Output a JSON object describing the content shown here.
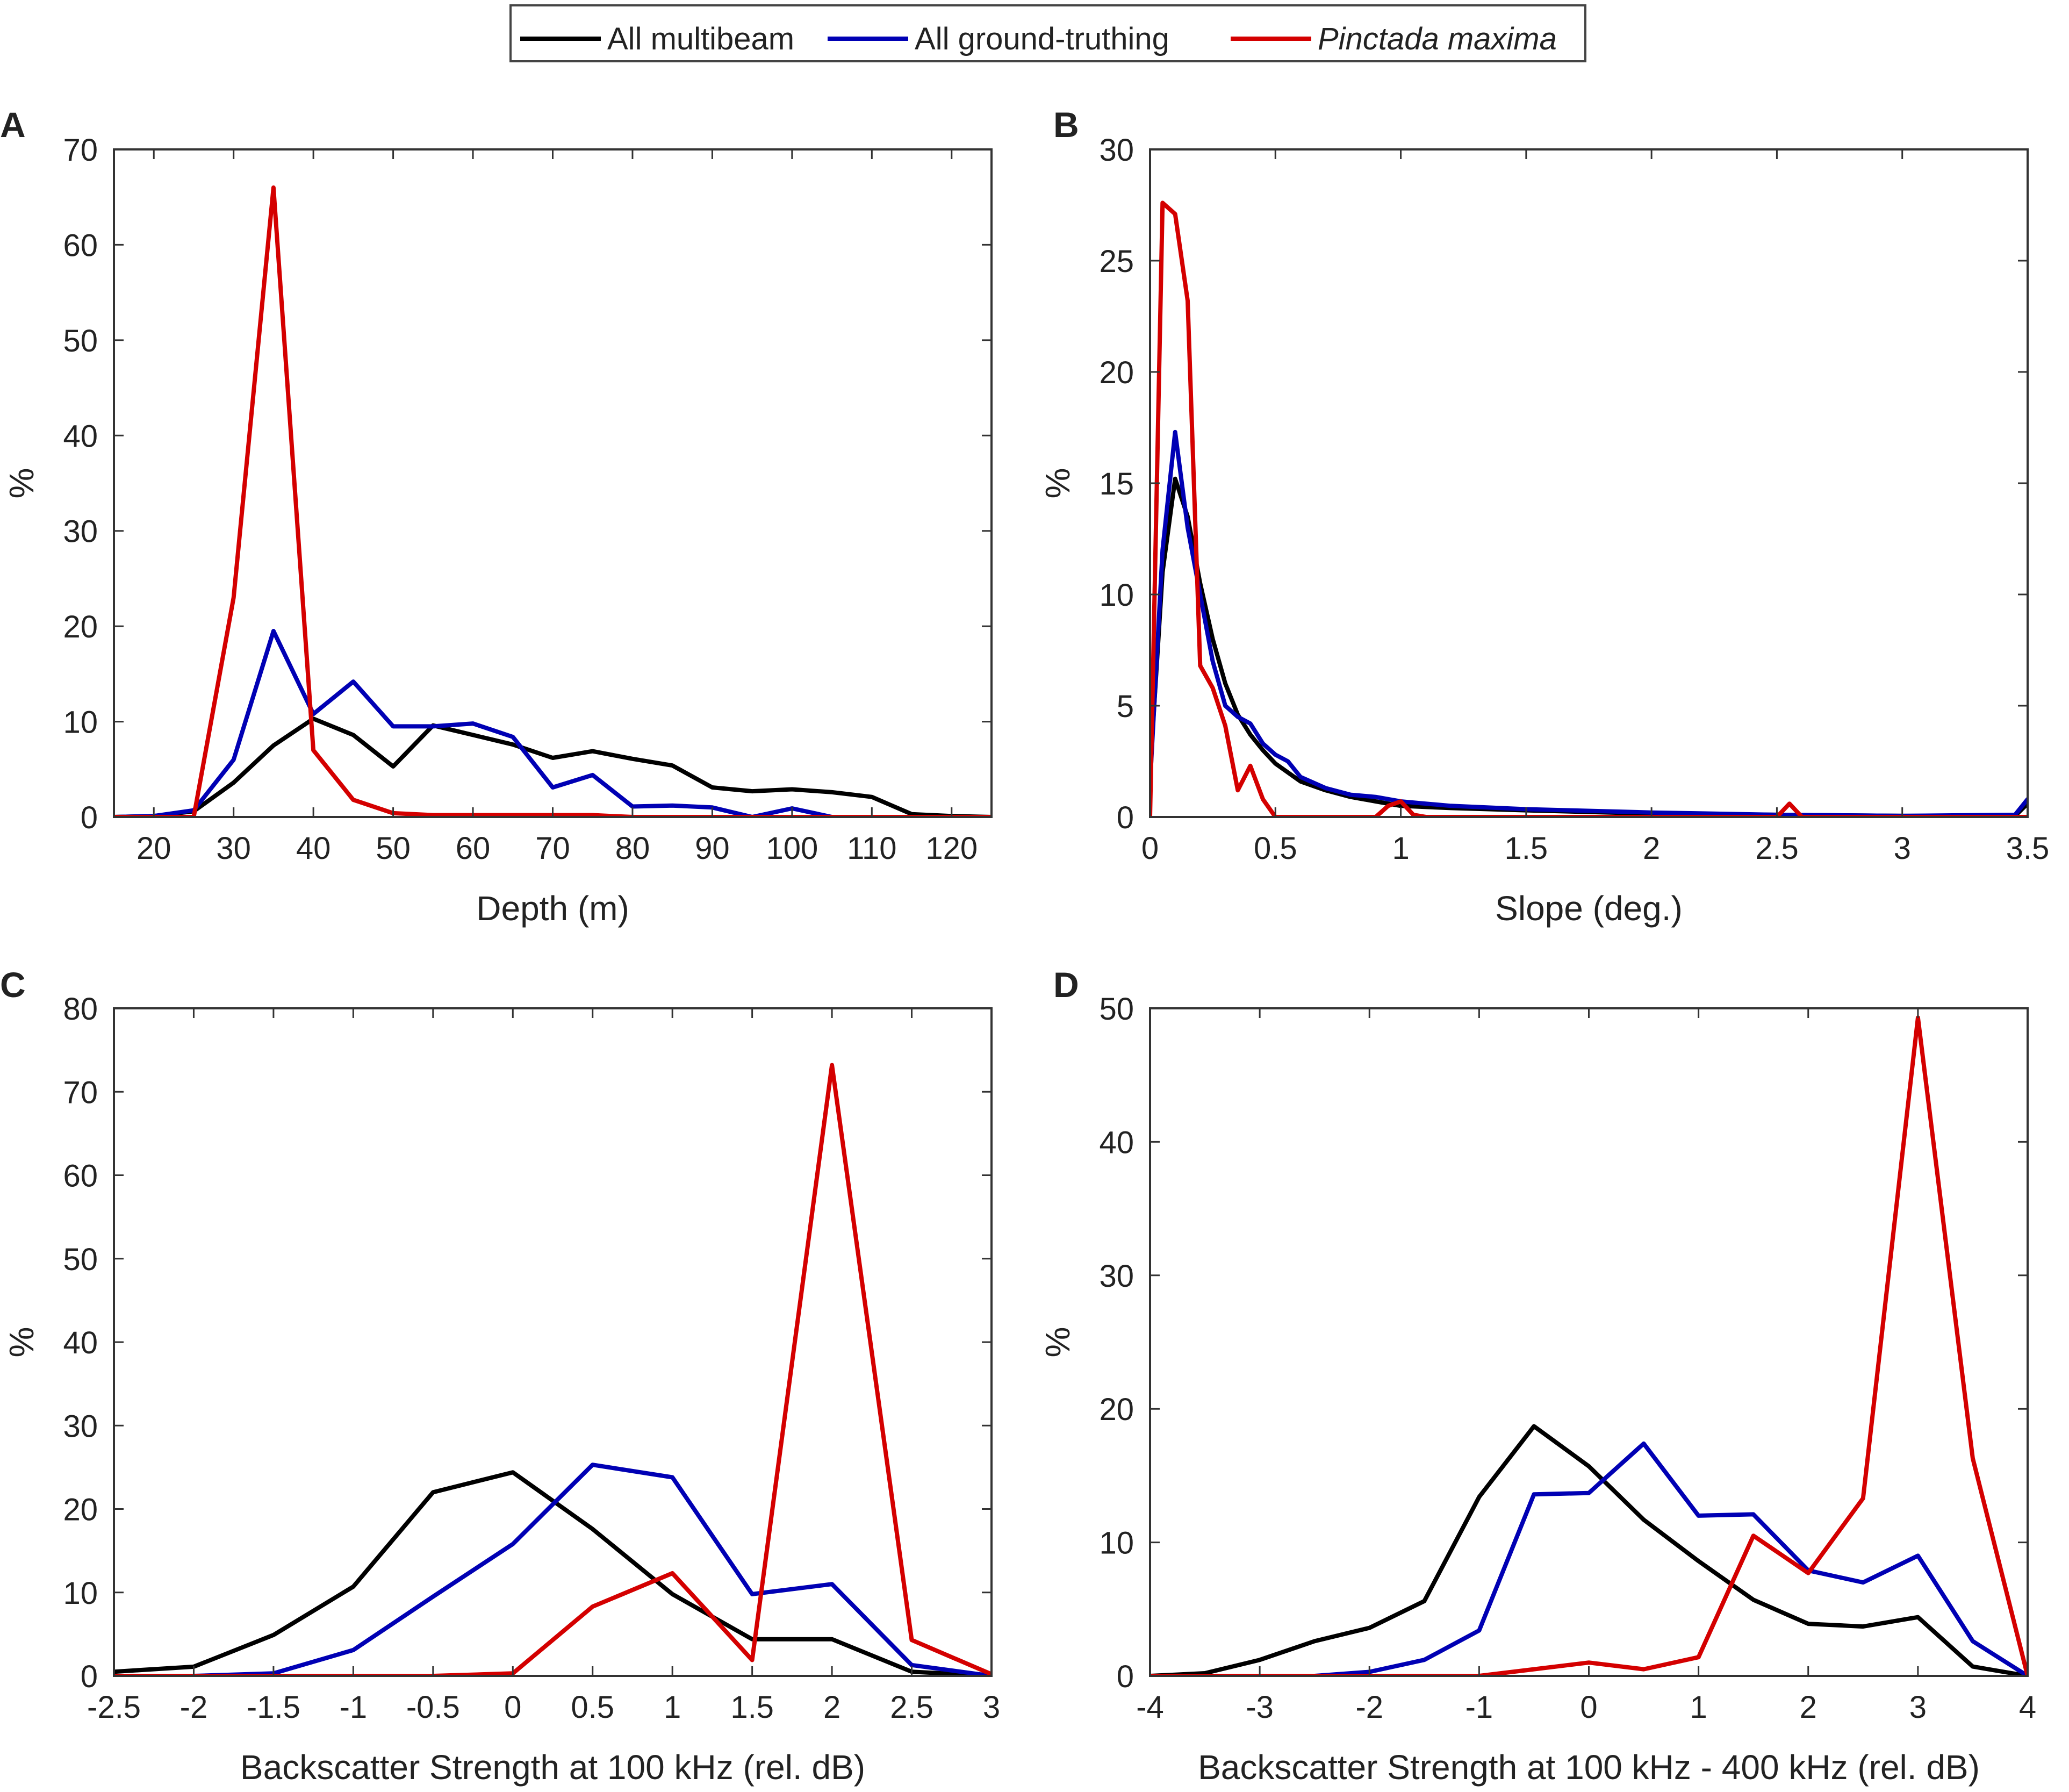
{
  "legend": {
    "entries": [
      {
        "label": "All multibeam",
        "color": "#000000",
        "italic": false
      },
      {
        "label": "All ground-truthing",
        "color": "#0000b4",
        "italic": false
      },
      {
        "label": "Pinctada maxima",
        "color": "#d40000",
        "italic": true
      }
    ]
  },
  "chart_data": [
    {
      "panel": "A",
      "type": "line",
      "title": "",
      "xlabel": "Depth (m)",
      "ylabel": "%",
      "xlim": [
        15,
        125
      ],
      "ylim": [
        0,
        70
      ],
      "xticks": [
        20,
        30,
        40,
        50,
        60,
        70,
        80,
        90,
        100,
        110,
        120
      ],
      "xtick_labels": [
        "20",
        "30",
        "40",
        "50",
        "60",
        "70",
        "80",
        "90",
        "100",
        "110",
        "120"
      ],
      "yticks": [
        0,
        10,
        20,
        30,
        40,
        50,
        60,
        70
      ],
      "ytick_labels": [
        "0",
        "10",
        "20",
        "30",
        "40",
        "50",
        "60",
        "70"
      ],
      "series": [
        {
          "name": "All multibeam",
          "color": "#000000",
          "x": [
            15,
            20,
            25,
            30,
            35,
            40,
            45,
            50,
            55,
            60,
            65,
            70,
            75,
            80,
            85,
            90,
            95,
            100,
            105,
            110,
            115,
            120,
            125
          ],
          "y": [
            0,
            0.1,
            0.6,
            3.6,
            7.5,
            10.3,
            8.6,
            5.3,
            9.6,
            8.6,
            7.6,
            6.2,
            6.9,
            6.1,
            5.4,
            3.1,
            2.7,
            2.9,
            2.6,
            2.1,
            0.3,
            0.1,
            0
          ]
        },
        {
          "name": "All ground-truthing",
          "color": "#0000b4",
          "x": [
            15,
            20,
            25,
            30,
            35,
            40,
            45,
            50,
            55,
            60,
            65,
            70,
            75,
            80,
            85,
            90,
            95,
            100,
            105,
            110,
            115,
            120,
            125
          ],
          "y": [
            0,
            0.1,
            0.7,
            6.0,
            19.5,
            10.8,
            14.2,
            9.5,
            9.5,
            9.8,
            8.4,
            3.1,
            4.4,
            1.1,
            1.2,
            1.0,
            0,
            0.9,
            0,
            0,
            0,
            0,
            0
          ]
        },
        {
          "name": "Pinctada maxima",
          "color": "#d40000",
          "x": [
            15,
            20,
            25,
            30,
            35,
            40,
            45,
            50,
            55,
            60,
            65,
            70,
            75,
            80,
            85,
            90,
            95,
            100,
            105,
            110,
            115,
            120,
            125
          ],
          "y": [
            0,
            0,
            0,
            23.0,
            66.0,
            7.0,
            1.8,
            0.4,
            0.2,
            0.2,
            0.2,
            0.2,
            0.2,
            0,
            0,
            0,
            0,
            0,
            0,
            0,
            0,
            0,
            0
          ]
        }
      ]
    },
    {
      "panel": "B",
      "type": "line",
      "title": "",
      "xlabel": "Slope (deg.)",
      "ylabel": "%",
      "xlim": [
        0,
        3.5
      ],
      "ylim": [
        0,
        30
      ],
      "xticks": [
        0,
        0.5,
        1,
        1.5,
        2,
        2.5,
        3,
        3.5
      ],
      "xtick_labels": [
        "0",
        "0.5",
        "1",
        "1.5",
        "2",
        "2.5",
        "3",
        "3.5"
      ],
      "yticks": [
        0,
        5,
        10,
        15,
        20,
        25,
        30
      ],
      "ytick_labels": [
        "0",
        "5",
        "10",
        "15",
        "20",
        "25",
        "30"
      ],
      "series": [
        {
          "name": "All multibeam",
          "color": "#000000",
          "x": [
            0,
            0.05,
            0.1,
            0.15,
            0.2,
            0.25,
            0.3,
            0.35,
            0.4,
            0.45,
            0.5,
            0.6,
            0.7,
            0.8,
            0.9,
            1.0,
            1.2,
            1.5,
            2.0,
            2.5,
            3.0,
            3.45,
            3.5
          ],
          "y": [
            2.0,
            11.0,
            15.2,
            13.5,
            10.5,
            8.0,
            6.0,
            4.6,
            3.7,
            3.0,
            2.4,
            1.6,
            1.2,
            0.9,
            0.7,
            0.5,
            0.4,
            0.3,
            0.15,
            0.1,
            0.05,
            0.05,
            0.6
          ]
        },
        {
          "name": "All ground-truthing",
          "color": "#0000b4",
          "x": [
            0,
            0.05,
            0.1,
            0.15,
            0.2,
            0.25,
            0.3,
            0.35,
            0.4,
            0.45,
            0.5,
            0.55,
            0.6,
            0.7,
            0.8,
            0.9,
            1.0,
            1.1,
            1.2,
            1.5,
            2.0,
            2.5,
            3.0,
            3.45,
            3.5
          ],
          "y": [
            1.5,
            12.0,
            17.3,
            13.0,
            10.0,
            7.0,
            5.0,
            4.5,
            4.2,
            3.3,
            2.8,
            2.5,
            1.8,
            1.3,
            1.0,
            0.9,
            0.7,
            0.6,
            0.5,
            0.35,
            0.2,
            0.1,
            0.05,
            0.1,
            0.8
          ]
        },
        {
          "name": "Pinctada maxima",
          "color": "#d40000",
          "x": [
            0,
            0.05,
            0.1,
            0.15,
            0.2,
            0.25,
            0.3,
            0.35,
            0.4,
            0.45,
            0.5,
            0.55,
            0.9,
            0.95,
            1.0,
            1.05,
            1.1,
            2.5,
            2.55,
            2.6,
            3.5
          ],
          "y": [
            0,
            27.6,
            27.1,
            23.2,
            6.8,
            5.8,
            4.1,
            1.2,
            2.3,
            0.8,
            0,
            0,
            0,
            0.5,
            0.7,
            0.1,
            0,
            0,
            0.6,
            0,
            0
          ]
        }
      ]
    },
    {
      "panel": "C",
      "type": "line",
      "title": "",
      "xlabel": "Backscatter Strength at 100 kHz (rel. dB)",
      "ylabel": "%",
      "xlim": [
        -2.5,
        3
      ],
      "ylim": [
        0,
        80
      ],
      "xticks": [
        -2.5,
        -2,
        -1.5,
        -1,
        -0.5,
        0,
        0.5,
        1,
        1.5,
        2,
        2.5,
        3
      ],
      "xtick_labels": [
        "-2.5",
        "-2",
        "-1.5",
        "-1",
        "-0.5",
        "0",
        "0.5",
        "1",
        "1.5",
        "2",
        "2.5",
        "3"
      ],
      "yticks": [
        0,
        10,
        20,
        30,
        40,
        50,
        60,
        70,
        80
      ],
      "ytick_labels": [
        "0",
        "10",
        "20",
        "30",
        "40",
        "50",
        "60",
        "70",
        "80"
      ],
      "series": [
        {
          "name": "All multibeam",
          "color": "#000000",
          "x": [
            -2.5,
            -2,
            -1.5,
            -1,
            -0.5,
            0,
            0.5,
            1,
            1.5,
            2,
            2.5,
            3
          ],
          "y": [
            0.5,
            1.1,
            4.9,
            10.7,
            22.0,
            24.4,
            17.6,
            9.8,
            4.4,
            4.4,
            0.5,
            0
          ]
        },
        {
          "name": "All ground-truthing",
          "color": "#0000b4",
          "x": [
            -2.5,
            -2,
            -1.5,
            -1,
            -0.5,
            0,
            0.5,
            1,
            1.5,
            2,
            2.5,
            3
          ],
          "y": [
            0,
            0,
            0.3,
            3.1,
            9.5,
            15.8,
            25.3,
            23.8,
            9.8,
            11.0,
            1.3,
            0
          ]
        },
        {
          "name": "Pinctada maxima",
          "color": "#d40000",
          "x": [
            -2.5,
            -2,
            -1.5,
            -1,
            -0.5,
            0,
            0.5,
            1,
            1.5,
            2,
            2.5,
            3
          ],
          "y": [
            0,
            0,
            0,
            0,
            0,
            0.3,
            8.3,
            12.3,
            1.9,
            73.2,
            4.3,
            0.2
          ]
        }
      ]
    },
    {
      "panel": "D",
      "type": "line",
      "title": "",
      "xlabel": "Backscatter Strength at 100 kHz - 400 kHz (rel. dB)",
      "ylabel": "%",
      "xlim": [
        -4,
        4
      ],
      "ylim": [
        0,
        50
      ],
      "xticks": [
        -4,
        -3,
        -2,
        -1,
        0,
        1,
        2,
        3,
        4
      ],
      "xtick_labels": [
        "-4",
        "-3",
        "-2",
        "-1",
        "0",
        "1",
        "2",
        "3",
        "4"
      ],
      "yticks": [
        0,
        10,
        20,
        30,
        40,
        50
      ],
      "ytick_labels": [
        "0",
        "10",
        "20",
        "30",
        "40",
        "50"
      ],
      "series": [
        {
          "name": "All multibeam",
          "color": "#000000",
          "x": [
            -4,
            -3.5,
            -3,
            -2.5,
            -2,
            -1.5,
            -1,
            -0.5,
            0,
            0.5,
            1,
            1.5,
            2,
            2.5,
            3,
            3.5,
            4
          ],
          "y": [
            0,
            0.2,
            1.2,
            2.6,
            3.6,
            5.6,
            13.4,
            18.7,
            15.7,
            11.7,
            8.6,
            5.7,
            3.9,
            3.7,
            4.4,
            0.7,
            0
          ]
        },
        {
          "name": "All ground-truthing",
          "color": "#0000b4",
          "x": [
            -4,
            -3.5,
            -3,
            -2.5,
            -2,
            -1.5,
            -1,
            -0.5,
            0,
            0.5,
            1,
            1.5,
            2,
            2.5,
            3,
            3.5,
            4
          ],
          "y": [
            0,
            0,
            0,
            0,
            0.3,
            1.2,
            3.4,
            13.6,
            13.7,
            17.4,
            12.0,
            12.1,
            7.9,
            7.0,
            9.0,
            2.6,
            0
          ]
        },
        {
          "name": "Pinctada maxima",
          "color": "#d40000",
          "x": [
            -4,
            -3.5,
            -3,
            -2.5,
            -2,
            -1.5,
            -1,
            -0.5,
            0,
            0.5,
            1,
            1.5,
            2,
            2.5,
            3,
            3.5,
            4
          ],
          "y": [
            0,
            0,
            0,
            0,
            0,
            0,
            0,
            0.5,
            1.0,
            0.5,
            1.4,
            10.5,
            7.7,
            13.3,
            49.3,
            16.3,
            0
          ]
        }
      ]
    }
  ]
}
